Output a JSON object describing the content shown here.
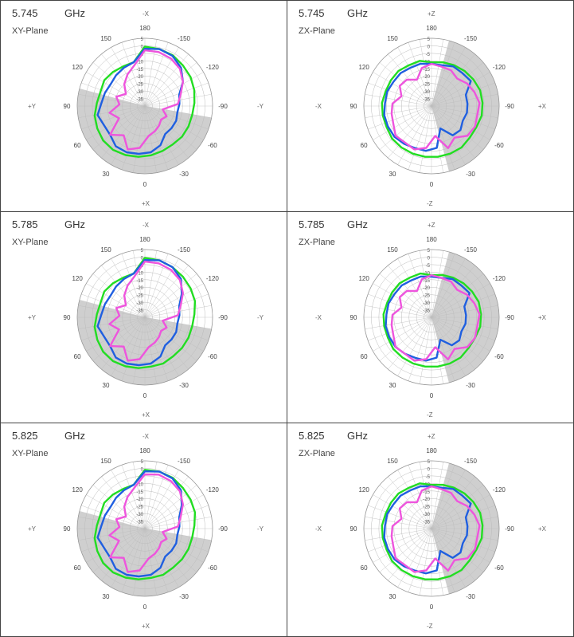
{
  "colors": {
    "green": "#22dd22",
    "blue": "#1f5fe0",
    "magenta": "#ee55dd",
    "sector": "#cfcfcf",
    "grid": "#bcbcbc",
    "border": "#444444"
  },
  "r_ticks": [
    "5",
    "0",
    "-5",
    "-10",
    "-15",
    "-20",
    "-25",
    "-30",
    "-35"
  ],
  "rlim": [
    -40,
    5
  ],
  "chart_data": [
    {
      "type": "polar",
      "freq": "5.745",
      "unit": "GHz",
      "plane": "XY-Plane",
      "top": "-X",
      "bottom": "+X",
      "left": "+Y",
      "right": "-Y",
      "angle_labels": [
        {
          "t": "180",
          "a": 0
        },
        {
          "t": "-150",
          "a": 30
        },
        {
          "t": "-120",
          "a": 60
        },
        {
          "t": "-90",
          "a": 90
        },
        {
          "t": "-60",
          "a": 120
        },
        {
          "t": "-30",
          "a": 150
        },
        {
          "t": "0",
          "a": 180
        },
        {
          "t": "30",
          "a": 210
        },
        {
          "t": "60",
          "a": 240
        },
        {
          "t": "90",
          "a": 270
        },
        {
          "t": "120",
          "a": 300
        },
        {
          "t": "150",
          "a": 330
        }
      ],
      "sector": [
        100,
        285
      ],
      "series": [
        {
          "color": "green",
          "values": [
            -0.5,
            -1,
            -1.5,
            -3,
            -4,
            -5.5,
            -7,
            -8,
            -8,
            -8,
            -8.5,
            -8,
            -7,
            -6,
            -5,
            -4,
            -4,
            -5,
            -6,
            -8,
            -9,
            -8,
            -9,
            -10,
            -10
          ]
        },
        {
          "color": "blue",
          "values": [
            -2,
            -1,
            -2,
            -5,
            -10,
            -16,
            -17,
            -18,
            -17,
            -17,
            -17,
            -12,
            -9,
            -8,
            -7,
            -7,
            -10,
            -10,
            -8,
            -11,
            -12,
            -13,
            -12,
            -11,
            -10
          ]
        },
        {
          "color": "magenta",
          "values": [
            -3,
            -3,
            -4,
            -6,
            -10,
            -15,
            -18,
            -28,
            -24,
            -26,
            -24,
            -22,
            -20,
            -12,
            -9,
            -16,
            -10,
            -21,
            -16,
            -23,
            -20,
            -25,
            -20,
            -16,
            -12
          ]
        }
      ]
    },
    {
      "type": "polar",
      "freq": "5.745",
      "unit": "GHz",
      "plane": "ZX-Plane",
      "top": "+Z",
      "bottom": "-Z",
      "left": "-X",
      "right": "+X",
      "angle_labels": [
        {
          "t": "180",
          "a": 0
        },
        {
          "t": "-150",
          "a": 30
        },
        {
          "t": "-120",
          "a": 60
        },
        {
          "t": "-90",
          "a": 90
        },
        {
          "t": "-60",
          "a": 120
        },
        {
          "t": "-30",
          "a": 150
        },
        {
          "t": "0",
          "a": 180
        },
        {
          "t": "30",
          "a": 210
        },
        {
          "t": "60",
          "a": 240
        },
        {
          "t": "90",
          "a": 270
        },
        {
          "t": "120",
          "a": 300
        },
        {
          "t": "150",
          "a": 330
        }
      ],
      "sector": [
        15,
        165
      ],
      "series": [
        {
          "color": "green",
          "values": [
            -11,
            -10,
            -9,
            -8,
            -7,
            -6,
            -6,
            -6,
            -7,
            -7,
            -6,
            -6,
            -6,
            -6,
            -6,
            -6,
            -6,
            -7,
            -7,
            -7,
            -8,
            -8,
            -8,
            -9,
            -9
          ]
        },
        {
          "color": "blue",
          "values": [
            -12,
            -12,
            -10,
            -10,
            -9,
            -16,
            -16,
            -16,
            -17,
            -15,
            -16,
            -24,
            -12,
            -10,
            -10,
            -9,
            -8,
            -8,
            -8,
            -9,
            -9,
            -10,
            -10,
            -11,
            -11
          ]
        },
        {
          "color": "magenta",
          "values": [
            -12,
            -13,
            -13,
            -15,
            -12,
            -10,
            -8,
            -9,
            -8,
            -9,
            -14,
            -10,
            -20,
            -12,
            -9,
            -10,
            -9,
            -12,
            -13,
            -14,
            -19,
            -15,
            -16,
            -20,
            -14
          ]
        }
      ]
    },
    {
      "type": "polar",
      "freq": "5.785",
      "unit": "GHz",
      "plane": "XY-Plane",
      "top": "-X",
      "bottom": "+X",
      "left": "+Y",
      "right": "-Y",
      "angle_labels": [
        {
          "t": "180",
          "a": 0
        },
        {
          "t": "-150",
          "a": 30
        },
        {
          "t": "-120",
          "a": 60
        },
        {
          "t": "-90",
          "a": 90
        },
        {
          "t": "-60",
          "a": 120
        },
        {
          "t": "-30",
          "a": 150
        },
        {
          "t": "0",
          "a": 180
        },
        {
          "t": "30",
          "a": 210
        },
        {
          "t": "60",
          "a": 240
        },
        {
          "t": "90",
          "a": 270
        },
        {
          "t": "120",
          "a": 300
        },
        {
          "t": "150",
          "a": 330
        }
      ],
      "sector": [
        100,
        285
      ],
      "series": [
        {
          "color": "green",
          "values": [
            -0.5,
            -1,
            -2,
            -3,
            -4,
            -5,
            -7,
            -8,
            -8,
            -8,
            -8,
            -7,
            -7,
            -6,
            -5,
            -4,
            -4,
            -5,
            -6,
            -8,
            -9,
            -8,
            -9,
            -10,
            -10
          ]
        },
        {
          "color": "blue",
          "values": [
            -2,
            -1,
            -2,
            -5,
            -11,
            -16,
            -17,
            -18,
            -17,
            -17,
            -17,
            -12,
            -9,
            -8,
            -7,
            -7,
            -10,
            -10,
            -8,
            -11,
            -12,
            -13,
            -12,
            -11,
            -10
          ]
        },
        {
          "color": "magenta",
          "values": [
            -3,
            -3,
            -4,
            -6,
            -10,
            -15,
            -18,
            -28,
            -24,
            -26,
            -24,
            -22,
            -20,
            -12,
            -9,
            -16,
            -10,
            -21,
            -16,
            -23,
            -20,
            -25,
            -20,
            -16,
            -12
          ]
        }
      ]
    },
    {
      "type": "polar",
      "freq": "5.785",
      "unit": "GHz",
      "plane": "ZX-Plane",
      "top": "+Z",
      "bottom": "-Z",
      "left": "-X",
      "right": "+X",
      "angle_labels": [
        {
          "t": "180",
          "a": 0
        },
        {
          "t": "-150",
          "a": 30
        },
        {
          "t": "-120",
          "a": 60
        },
        {
          "t": "-90",
          "a": 90
        },
        {
          "t": "-60",
          "a": 120
        },
        {
          "t": "-30",
          "a": 150
        },
        {
          "t": "0",
          "a": 180
        },
        {
          "t": "30",
          "a": 210
        },
        {
          "t": "60",
          "a": 240
        },
        {
          "t": "90",
          "a": 270
        },
        {
          "t": "120",
          "a": 300
        },
        {
          "t": "150",
          "a": 330
        }
      ],
      "sector": [
        15,
        165
      ],
      "series": [
        {
          "color": "green",
          "values": [
            -12,
            -11,
            -10,
            -9,
            -8,
            -7,
            -7,
            -7,
            -8,
            -8,
            -7,
            -7,
            -7,
            -7,
            -7,
            -7,
            -7,
            -8,
            -8,
            -8,
            -9,
            -9,
            -9,
            -10,
            -10
          ]
        },
        {
          "color": "blue",
          "values": [
            -13,
            -13,
            -11,
            -11,
            -10,
            -17,
            -17,
            -17,
            -18,
            -16,
            -17,
            -24,
            -13,
            -11,
            -11,
            -10,
            -9,
            -9,
            -9,
            -10,
            -10,
            -11,
            -11,
            -12,
            -12
          ]
        },
        {
          "color": "magenta",
          "values": [
            -12,
            -13,
            -13,
            -15,
            -12,
            -10,
            -8,
            -9,
            -8,
            -9,
            -14,
            -10,
            -20,
            -12,
            -9,
            -10,
            -9,
            -12,
            -13,
            -14,
            -19,
            -15,
            -16,
            -20,
            -14
          ]
        }
      ]
    },
    {
      "type": "polar",
      "freq": "5.825",
      "unit": "GHz",
      "plane": "XY-Plane",
      "top": "-X",
      "bottom": "+X",
      "left": "+Y",
      "right": "-Y",
      "angle_labels": [
        {
          "t": "180",
          "a": 0
        },
        {
          "t": "-150",
          "a": 30
        },
        {
          "t": "-120",
          "a": 60
        },
        {
          "t": "-90",
          "a": 90
        },
        {
          "t": "-60",
          "a": 120
        },
        {
          "t": "-30",
          "a": 150
        },
        {
          "t": "0",
          "a": 180
        },
        {
          "t": "30",
          "a": 210
        },
        {
          "t": "60",
          "a": 240
        },
        {
          "t": "90",
          "a": 270
        },
        {
          "t": "120",
          "a": 300
        },
        {
          "t": "150",
          "a": 330
        }
      ],
      "sector": [
        100,
        285
      ],
      "series": [
        {
          "color": "green",
          "values": [
            -1,
            -1,
            -1.5,
            -3,
            -4,
            -5,
            -7,
            -8,
            -8,
            -8,
            -8,
            -7,
            -7,
            -6,
            -5,
            -4,
            -4,
            -5,
            -6,
            -8,
            -9,
            -8,
            -9,
            -10,
            -10
          ]
        },
        {
          "color": "blue",
          "values": [
            -2,
            -1,
            -2,
            -5,
            -11,
            -16,
            -17,
            -18,
            -17,
            -17,
            -17,
            -12,
            -9,
            -8,
            -7,
            -7,
            -10,
            -10,
            -8,
            -11,
            -12,
            -13,
            -12,
            -11,
            -10
          ]
        },
        {
          "color": "magenta",
          "values": [
            -4,
            -3,
            -4,
            -6,
            -10,
            -15,
            -18,
            -28,
            -24,
            -26,
            -24,
            -22,
            -20,
            -12,
            -9,
            -16,
            -10,
            -21,
            -16,
            -23,
            -20,
            -25,
            -20,
            -16,
            -12
          ]
        }
      ]
    },
    {
      "type": "polar",
      "freq": "5.825",
      "unit": "GHz",
      "plane": "ZX-Plane",
      "top": "+Z",
      "bottom": "-Z",
      "left": "-X",
      "right": "+X",
      "angle_labels": [
        {
          "t": "180",
          "a": 0
        },
        {
          "t": "-150",
          "a": 30
        },
        {
          "t": "-120",
          "a": 60
        },
        {
          "t": "-90",
          "a": 90
        },
        {
          "t": "-60",
          "a": 120
        },
        {
          "t": "-30",
          "a": 150
        },
        {
          "t": "0",
          "a": 180
        },
        {
          "t": "30",
          "a": 210
        },
        {
          "t": "60",
          "a": 240
        },
        {
          "t": "90",
          "a": 270
        },
        {
          "t": "120",
          "a": 300
        },
        {
          "t": "150",
          "a": 330
        }
      ],
      "sector": [
        15,
        165
      ],
      "series": [
        {
          "color": "green",
          "values": [
            -11,
            -10,
            -9,
            -8,
            -7,
            -6,
            -6,
            -6,
            -7,
            -7,
            -6,
            -6,
            -6,
            -6,
            -6,
            -6,
            -6,
            -7,
            -7,
            -7,
            -8,
            -8,
            -8,
            -9,
            -9
          ]
        },
        {
          "color": "blue",
          "values": [
            -12,
            -12,
            -10,
            -10,
            -9,
            -16,
            -16,
            -16,
            -17,
            -15,
            -16,
            -24,
            -12,
            -10,
            -10,
            -9,
            -8,
            -8,
            -8,
            -9,
            -9,
            -10,
            -10,
            -11,
            -11
          ]
        },
        {
          "color": "magenta",
          "values": [
            -12,
            -13,
            -13,
            -15,
            -12,
            -10,
            -8,
            -9,
            -8,
            -9,
            -14,
            -10,
            -20,
            -12,
            -9,
            -10,
            -9,
            -12,
            -13,
            -14,
            -19,
            -15,
            -16,
            -20,
            -14
          ]
        }
      ]
    }
  ]
}
